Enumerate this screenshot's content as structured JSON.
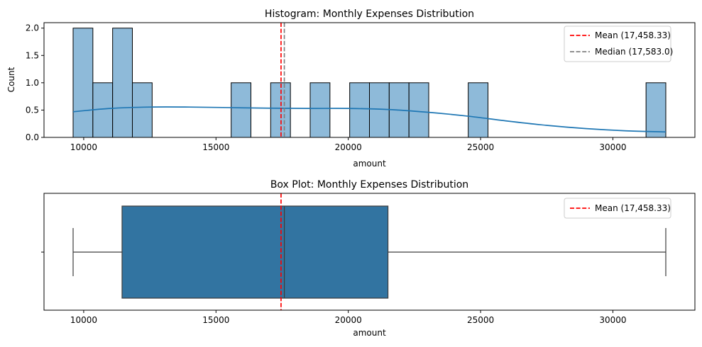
{
  "chart_data": [
    {
      "type": "histogram",
      "title": "Histogram: Monthly Expenses Distribution",
      "xlabel": "amount",
      "ylabel": "Count",
      "xlim": [
        8500,
        33100
      ],
      "ylim": [
        0,
        2.1
      ],
      "xticks": [
        10000,
        15000,
        20000,
        25000,
        30000
      ],
      "xtick_labels": [
        "10000",
        "15000",
        "20000",
        "25000",
        "30000"
      ],
      "yticks": [
        0.0,
        0.5,
        1.0,
        1.5,
        2.0
      ],
      "ytick_labels": [
        "0.0",
        "0.5",
        "1.0",
        "1.5",
        "2.0"
      ],
      "bin_range": [
        9600,
        32000
      ],
      "bin_count": 30,
      "counts": [
        2,
        1,
        2,
        1,
        0,
        0,
        0,
        0,
        1,
        0,
        1,
        0,
        1,
        0,
        1,
        1,
        1,
        1,
        0,
        0,
        1,
        0,
        0,
        0,
        0,
        0,
        0,
        0,
        0,
        1
      ],
      "kde": {
        "x": [
          9600,
          11000,
          12500,
          14000,
          15500,
          17000,
          18500,
          20000,
          21500,
          23000,
          24500,
          26000,
          27500,
          29000,
          30500,
          32000
        ],
        "y": [
          0.47,
          0.53,
          0.555,
          0.555,
          0.545,
          0.535,
          0.53,
          0.53,
          0.51,
          0.46,
          0.39,
          0.3,
          0.22,
          0.16,
          0.12,
          0.1
        ]
      },
      "mean_line": {
        "value": 17458.33,
        "label": "Mean (17,458.33)",
        "color": "#ff0000",
        "style": "dashed"
      },
      "median_line": {
        "value": 17583.0,
        "label": "Median (17,583.0)",
        "color": "#808080",
        "style": "dashed"
      },
      "bar_fill": "#8ebad9",
      "bar_edge": "#000000",
      "kde_color": "#1f77b4",
      "legend_position": "upper right"
    },
    {
      "type": "box",
      "title": "Box Plot: Monthly Expenses Distribution",
      "xlabel": "amount",
      "xlim": [
        8500,
        33100
      ],
      "xticks": [
        10000,
        15000,
        20000,
        25000,
        30000
      ],
      "xtick_labels": [
        "10000",
        "15000",
        "20000",
        "25000",
        "30000"
      ],
      "whisker_low": 9600,
      "q1": 11450,
      "median": 17583.0,
      "q3": 21500,
      "whisker_high": 32000,
      "box_color": "#3274a1",
      "mean_line": {
        "value": 17458.33,
        "label": "Mean (17,458.33)",
        "color": "#ff0000",
        "style": "dashed"
      },
      "legend_position": "upper right"
    }
  ]
}
